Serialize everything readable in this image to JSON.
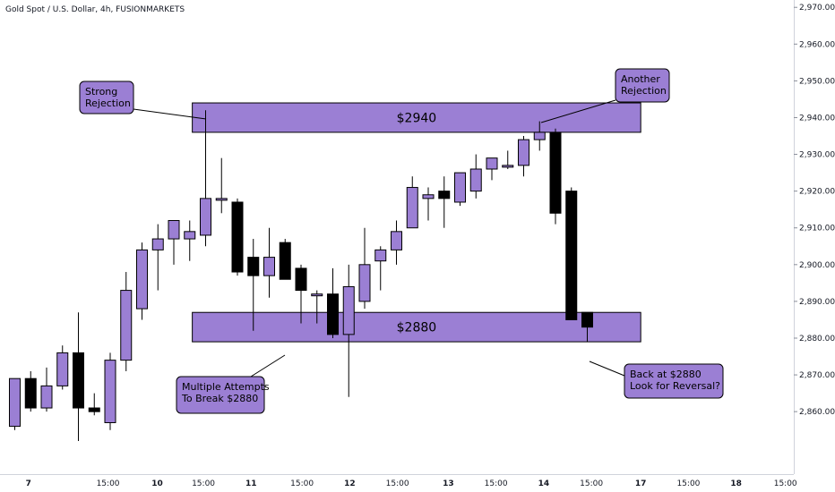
{
  "header": {
    "title": "Gold Spot / U.S. Dollar, 4h, FUSIONMARKETS"
  },
  "colors": {
    "bull": "#9b7fd4",
    "bear": "#000000",
    "zone": "#9b7fd4",
    "outline": "#000000"
  },
  "chart_data": {
    "type": "candlestick",
    "title": "Gold Spot / U.S. Dollar, 4h, FUSIONMARKETS",
    "ylim": [
      2843,
      2972
    ],
    "yticks": [
      2860,
      2870,
      2880,
      2890,
      2900,
      2910,
      2920,
      2930,
      2940,
      2950,
      2960,
      2970
    ],
    "ytick_labels": [
      "2,860.00",
      "2,870.00",
      "2,880.00",
      "2,890.00",
      "2,900.00",
      "2,910.00",
      "2,920.00",
      "2,930.00",
      "2,940.00",
      "2,950.00",
      "2,960.00",
      "2,970.00"
    ],
    "xticks": [
      {
        "i": 1.2,
        "label": "7"
      },
      {
        "i": 6.2,
        "label": "15:00"
      },
      {
        "i": 9.3,
        "label": "10"
      },
      {
        "i": 12.2,
        "label": "15:00"
      },
      {
        "i": 15.2,
        "label": "11"
      },
      {
        "i": 18.4,
        "label": "15:00"
      },
      {
        "i": 21.4,
        "label": "12"
      },
      {
        "i": 24.4,
        "label": "15:00"
      },
      {
        "i": 27.6,
        "label": "13"
      },
      {
        "i": 30.6,
        "label": "15:00"
      },
      {
        "i": 33.6,
        "label": "14"
      },
      {
        "i": 36.6,
        "label": "15:00"
      },
      {
        "i": 39.7,
        "label": "17"
      },
      {
        "i": 42.7,
        "label": "15:00"
      },
      {
        "i": 45.7,
        "label": "18"
      },
      {
        "i": 48.8,
        "label": "15:00"
      }
    ],
    "candles": [
      {
        "o": 2856,
        "h": 2869,
        "l": 2855,
        "c": 2869
      },
      {
        "o": 2869,
        "h": 2871,
        "l": 2860,
        "c": 2861
      },
      {
        "o": 2861,
        "h": 2872,
        "l": 2860,
        "c": 2867
      },
      {
        "o": 2867,
        "h": 2878,
        "l": 2866,
        "c": 2876
      },
      {
        "o": 2876,
        "h": 2887,
        "l": 2852,
        "c": 2861
      },
      {
        "o": 2861,
        "h": 2865,
        "l": 2859,
        "c": 2860
      },
      {
        "o": 2857,
        "h": 2876,
        "l": 2855,
        "c": 2874
      },
      {
        "o": 2874,
        "h": 2898,
        "l": 2871,
        "c": 2893
      },
      {
        "o": 2888,
        "h": 2906,
        "l": 2885,
        "c": 2904
      },
      {
        "o": 2904,
        "h": 2911,
        "l": 2893,
        "c": 2907
      },
      {
        "o": 2907,
        "h": 2912,
        "l": 2900,
        "c": 2912
      },
      {
        "o": 2907,
        "h": 2912,
        "l": 2901,
        "c": 2909
      },
      {
        "o": 2908,
        "h": 2942,
        "l": 2905,
        "c": 2918
      },
      {
        "o": 2918,
        "h": 2929,
        "l": 2914,
        "c": 2918
      },
      {
        "o": 2917,
        "h": 2918,
        "l": 2897,
        "c": 2898
      },
      {
        "o": 2902,
        "h": 2907,
        "l": 2882,
        "c": 2897
      },
      {
        "o": 2897,
        "h": 2910,
        "l": 2891,
        "c": 2902
      },
      {
        "o": 2906,
        "h": 2907,
        "l": 2896,
        "c": 2896
      },
      {
        "o": 2899,
        "h": 2900,
        "l": 2884,
        "c": 2893
      },
      {
        "o": 2892,
        "h": 2893,
        "l": 2884,
        "c": 2892
      },
      {
        "o": 2892,
        "h": 2899,
        "l": 2880,
        "c": 2881
      },
      {
        "o": 2881,
        "h": 2900,
        "l": 2864,
        "c": 2894
      },
      {
        "o": 2890,
        "h": 2910,
        "l": 2888,
        "c": 2900
      },
      {
        "o": 2901,
        "h": 2905,
        "l": 2893,
        "c": 2904
      },
      {
        "o": 2904,
        "h": 2912,
        "l": 2900,
        "c": 2909
      },
      {
        "o": 2910,
        "h": 2924,
        "l": 2910,
        "c": 2921
      },
      {
        "o": 2918,
        "h": 2921,
        "l": 2912,
        "c": 2919
      },
      {
        "o": 2920,
        "h": 2924,
        "l": 2910,
        "c": 2918
      },
      {
        "o": 2917,
        "h": 2924,
        "l": 2916,
        "c": 2925
      },
      {
        "o": 2920,
        "h": 2930,
        "l": 2918,
        "c": 2926
      },
      {
        "o": 2926,
        "h": 2929,
        "l": 2923,
        "c": 2929
      },
      {
        "o": 2927,
        "h": 2931,
        "l": 2926,
        "c": 2927
      },
      {
        "o": 2927,
        "h": 2935,
        "l": 2924,
        "c": 2934
      },
      {
        "o": 2934,
        "h": 2939,
        "l": 2931,
        "c": 2936
      },
      {
        "o": 2936,
        "h": 2937,
        "l": 2911,
        "c": 2914
      },
      {
        "o": 2920,
        "h": 2921,
        "l": 2885,
        "c": 2885
      },
      {
        "o": 2887,
        "h": 2887,
        "l": 2879,
        "c": 2883
      }
    ],
    "zones": [
      {
        "label": "$2940",
        "low": 2936,
        "high": 2944
      },
      {
        "label": "$2880",
        "low": 2879,
        "high": 2887
      }
    ],
    "annotations": [
      {
        "lines": [
          "Strong",
          "Rejection"
        ]
      },
      {
        "lines": [
          "Another",
          "Rejection"
        ]
      },
      {
        "lines": [
          "Multiple Attempts",
          "To Break $2880"
        ]
      },
      {
        "lines": [
          "Back at $2880",
          "Look for Reversal?"
        ]
      }
    ]
  }
}
